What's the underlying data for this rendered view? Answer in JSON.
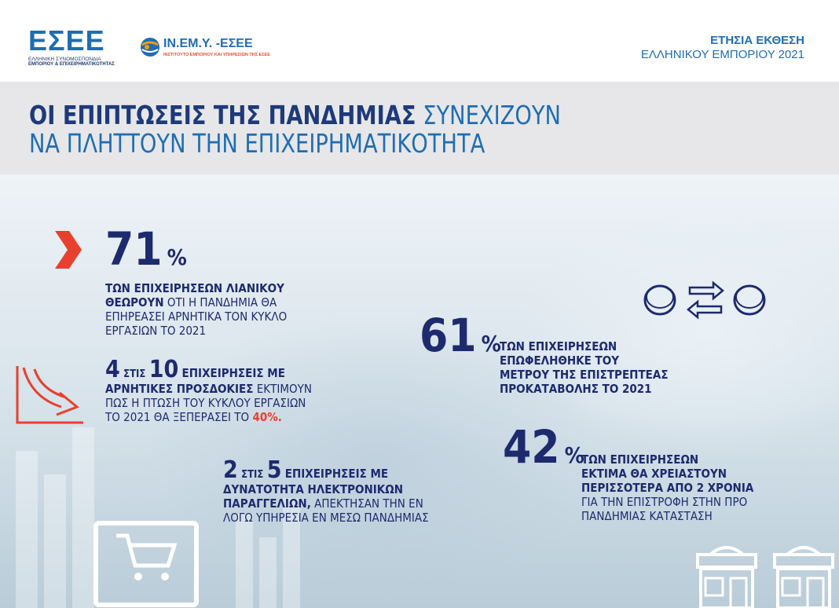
{
  "header": {
    "esee_logo": "ΕΣΕΕ",
    "esee_sub1": "ΕΛΛΗΝΙΚΗ ΣΥΝΟΜΟΣΠΟΝΔΙΑ",
    "esee_sub2": "ΕΜΠΟΡΙΟΥ & ΕΠΙΧΕΙΡΗΜΑΤΙΚΟΤΗΤΑΣ",
    "inemy_name": "ΙΝ.ΕΜ.Υ. -ΕΣΕΕ",
    "inemy_tag": "ΙΝΣΤΙΤΟΥΤΟ ΕΜΠΟΡΙΟΥ ΚΑΙ ΥΠΗΡΕΣΙΩΝ ΤΗΣ ΕΣΕΕ",
    "report_line1": "ΕΤΗΣΙΑ ΕΚΘΕΣΗ",
    "report_line2": "ΕΛΛΗΝΙΚΟΥ ΕΜΠΟΡΙΟΥ 2021"
  },
  "title": {
    "bold": "ΟΙ ΕΠΙΠΤΩΣΕΙΣ ΤΗΣ ΠΑΝΔΗΜΙΑΣ",
    "rest1": " ΣΥΝΕΧΙΖΟΥΝ",
    "line2": "ΝΑ ΠΛΗΤΤΟΥΝ ΤΗΝ ΕΠΙΧΕΙΡΗΜΑΤΙΚΟΤΗΤΑ"
  },
  "stat71": {
    "value": "71",
    "unit": "%",
    "bold1": "ΤΩΝ ΕΠΙΧΕΙΡΗΣΕΩΝ ΛΙΑΝΙΚΟΥ",
    "bold2": "ΘΕΩΡΟΥΝ",
    "rest2": " ΟΤΙ Η ΠΑΝΔΗΜΙΑ ΘΑ",
    "line3": "ΕΠΗΡΕΑΣΕΙ ΑΡΝΗΤΙΚΑ ΤΟΝ ΚΥΚΛΟ",
    "line4": "ΕΡΓΑΣΙΩΝ ΤΟ 2021"
  },
  "stat4of10": {
    "a": "4",
    "of": "ΣΤΙΣ",
    "b": "10",
    "bold1": "ΕΠΙΧΕΙΡΗΣΕΙΣ ΜΕ",
    "bold2": "ΑΡΝΗΤΙΚΕΣ ΠΡΟΣΔΟΚΙΕΣ",
    "rest2": " ΕΚΤΙΜΟΥΝ",
    "line3": "ΠΩΣ Η ΠΤΩΣΗ ΤΟΥ ΚΥΚΛΟΥ ΕΡΓΑΣΙΩΝ",
    "line4": "ΤΟ 2021 ΘΑ ΞΕΠΕΡΑΣΕΙ ΤΟ ",
    "highlight": "40%."
  },
  "stat2of5": {
    "a": "2",
    "of": "ΣΤΙΣ",
    "b": "5",
    "bold1": "ΕΠΙΧΕΙΡΗΣΕΙΣ ΜΕ",
    "bold2": "ΔΥΝΑΤΟΤΗΤΑ ΗΛΕΚΤΡΟΝΙΚΩΝ",
    "bold3": "ΠΑΡΑΓΓΕΛΙΩΝ,",
    "rest3": " ΑΠΕΚΤΗΣΑΝ ΤΗΝ ΕΝ",
    "line4": "ΛΟΓΩ ΥΠΗΡΕΣΙΑ ΕΝ ΜΕΣΩ ΠΑΝΔΗΜΙΑΣ"
  },
  "stat61": {
    "value": "61",
    "unit": "%",
    "line1": "ΤΩΝ ΕΠΙΧΕΙΡΗΣΕΩΝ",
    "line2": "ΕΠΩΦΕΛΗΘΗΚΕ ΤΟΥ",
    "line3": "ΜΕΤΡΟΥ ΤΗΣ ΕΠΙΣΤΡΕΠΤΕΑΣ",
    "line4": "ΠΡΟΚΑΤΑΒΟΛΗΣ ΤΟ 2021"
  },
  "stat42": {
    "value": "42",
    "unit": "%",
    "line1": "ΤΩΝ ΕΠΙΧΕΙΡΗΣΕΩΝ",
    "line2": "ΕΚΤΙΜΑ ΘΑ ΧΡΕΙΑΣΤΟΥΝ",
    "line3": "ΠΕΡΙΣΣΟΤΕΡΑ ΑΠΟ 2 ΧΡΟΝΙΑ",
    "line4": "ΓΙΑ ΤΗΝ ΕΠΙΣΤΡΟΦΗ ΣΤΗΝ ΠΡΟ",
    "line5": "ΠΑΝΔΗΜΙΑΣ ΚΑΤΑΣΤΑΣΗ"
  },
  "colors": {
    "brand_blue": "#1f6db3",
    "navy": "#1d2a6e",
    "accent_red": "#e8402f"
  },
  "icons": [
    "chevron-right-icon",
    "decline-chart-icon",
    "coin-exchange-icon",
    "shopping-cart-monitor-icon",
    "shop-icon"
  ]
}
